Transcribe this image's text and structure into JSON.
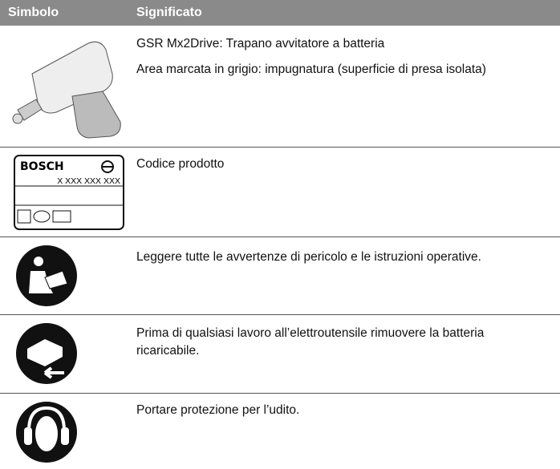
{
  "table": {
    "header": [
      "Simbolo",
      "Significato"
    ],
    "rows": [
      {
        "meaning": [
          "GSR Mx2Drive: Trapano avvitatore a batteria",
          "Area marcata in grigio: impugnatura (superficie di presa isolata)"
        ]
      },
      {
        "symbol": [
          "BOSCH",
          "X XXX XXX XXX"
        ],
        "meaning": [
          "Codice prodotto"
        ]
      },
      {
        "meaning": [
          "Leggere tutte le avvertenze di pericolo e le istruzioni operative."
        ]
      },
      {
        "meaning": [
          "Prima di qualsiasi lavoro all’elettroutensile rimuovere la batteria ricaricabile."
        ]
      },
      {
        "meaning": [
          "Portare protezione per l’udito."
        ]
      }
    ]
  }
}
